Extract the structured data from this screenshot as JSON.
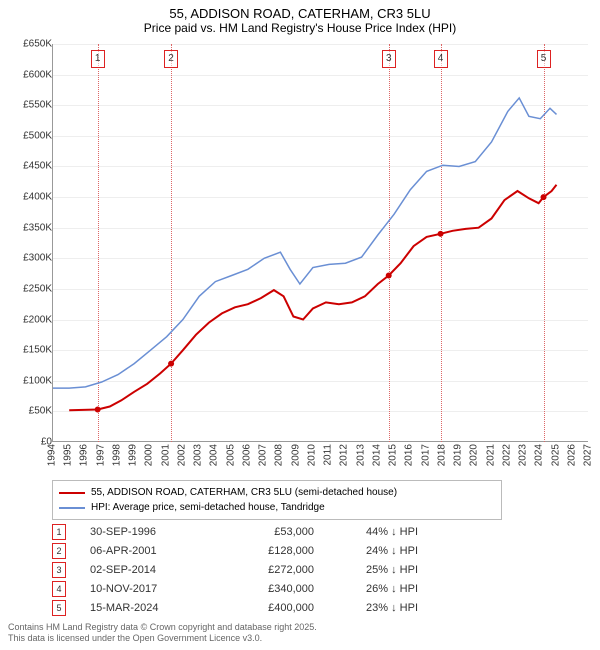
{
  "title": "55, ADDISON ROAD, CATERHAM, CR3 5LU",
  "subtitle": "Price paid vs. HM Land Registry's House Price Index (HPI)",
  "chart": {
    "type": "line",
    "x_axis": {
      "min": 1994,
      "max": 2027,
      "ticks": [
        1994,
        1995,
        1996,
        1997,
        1998,
        1999,
        2000,
        2001,
        2002,
        2003,
        2004,
        2005,
        2006,
        2007,
        2008,
        2009,
        2010,
        2011,
        2012,
        2013,
        2014,
        2015,
        2016,
        2017,
        2018,
        2019,
        2020,
        2021,
        2022,
        2023,
        2024,
        2025,
        2026,
        2027
      ]
    },
    "y_axis": {
      "min": 0,
      "max": 650000,
      "ticks": [
        0,
        50000,
        100000,
        150000,
        200000,
        250000,
        300000,
        350000,
        400000,
        450000,
        500000,
        550000,
        600000,
        650000
      ],
      "labels": [
        "£0",
        "£50K",
        "£100K",
        "£150K",
        "£200K",
        "£250K",
        "£300K",
        "£350K",
        "£400K",
        "£450K",
        "£500K",
        "£550K",
        "£600K",
        "£650K"
      ]
    },
    "grid_color": "#eeeeee",
    "axis_color": "#999999",
    "background": "#ffffff",
    "series": [
      {
        "name": "property_line",
        "label": "55, ADDISON ROAD, CATERHAM, CR3 5LU (semi-detached house)",
        "color": "#cc0000",
        "width": 2,
        "data": [
          [
            1995.0,
            52000
          ],
          [
            1996.75,
            53000
          ],
          [
            1997.5,
            58000
          ],
          [
            1998.2,
            68000
          ],
          [
            1999.0,
            82000
          ],
          [
            1999.8,
            95000
          ],
          [
            2000.6,
            112000
          ],
          [
            2001.27,
            128000
          ],
          [
            2002.0,
            150000
          ],
          [
            2002.8,
            175000
          ],
          [
            2003.6,
            195000
          ],
          [
            2004.4,
            210000
          ],
          [
            2005.2,
            220000
          ],
          [
            2006.0,
            225000
          ],
          [
            2006.8,
            235000
          ],
          [
            2007.6,
            248000
          ],
          [
            2008.2,
            238000
          ],
          [
            2008.8,
            205000
          ],
          [
            2009.4,
            200000
          ],
          [
            2010.0,
            218000
          ],
          [
            2010.8,
            228000
          ],
          [
            2011.6,
            225000
          ],
          [
            2012.4,
            228000
          ],
          [
            2013.2,
            238000
          ],
          [
            2014.0,
            258000
          ],
          [
            2014.67,
            272000
          ],
          [
            2015.4,
            292000
          ],
          [
            2016.2,
            320000
          ],
          [
            2017.0,
            335000
          ],
          [
            2017.86,
            340000
          ],
          [
            2018.6,
            345000
          ],
          [
            2019.4,
            348000
          ],
          [
            2020.2,
            350000
          ],
          [
            2021.0,
            365000
          ],
          [
            2021.8,
            395000
          ],
          [
            2022.6,
            410000
          ],
          [
            2023.3,
            398000
          ],
          [
            2023.9,
            390000
          ],
          [
            2024.2,
            400000
          ],
          [
            2024.7,
            410000
          ],
          [
            2025.0,
            420000
          ]
        ]
      },
      {
        "name": "hpi_line",
        "label": "HPI: Average price, semi-detached house, Tandridge",
        "color": "#6a8fd4",
        "width": 1.5,
        "data": [
          [
            1994.0,
            88000
          ],
          [
            1995.0,
            88000
          ],
          [
            1996.0,
            90000
          ],
          [
            1997.0,
            98000
          ],
          [
            1998.0,
            110000
          ],
          [
            1999.0,
            128000
          ],
          [
            2000.0,
            150000
          ],
          [
            2001.0,
            172000
          ],
          [
            2002.0,
            200000
          ],
          [
            2003.0,
            238000
          ],
          [
            2004.0,
            262000
          ],
          [
            2005.0,
            272000
          ],
          [
            2006.0,
            282000
          ],
          [
            2007.0,
            300000
          ],
          [
            2008.0,
            310000
          ],
          [
            2008.6,
            282000
          ],
          [
            2009.2,
            258000
          ],
          [
            2010.0,
            285000
          ],
          [
            2011.0,
            290000
          ],
          [
            2012.0,
            292000
          ],
          [
            2013.0,
            302000
          ],
          [
            2014.0,
            338000
          ],
          [
            2015.0,
            372000
          ],
          [
            2016.0,
            412000
          ],
          [
            2017.0,
            442000
          ],
          [
            2018.0,
            452000
          ],
          [
            2019.0,
            450000
          ],
          [
            2020.0,
            458000
          ],
          [
            2021.0,
            490000
          ],
          [
            2022.0,
            540000
          ],
          [
            2022.7,
            562000
          ],
          [
            2023.3,
            532000
          ],
          [
            2024.0,
            528000
          ],
          [
            2024.6,
            545000
          ],
          [
            2025.0,
            535000
          ]
        ]
      }
    ],
    "markers": [
      {
        "n": "1",
        "x": 1996.75,
        "y": 53000
      },
      {
        "n": "2",
        "x": 2001.27,
        "y": 128000
      },
      {
        "n": "3",
        "x": 2014.67,
        "y": 272000
      },
      {
        "n": "4",
        "x": 2017.86,
        "y": 340000
      },
      {
        "n": "5",
        "x": 2024.2,
        "y": 400000
      }
    ],
    "marker_color": "#d22",
    "marker_dotted": "#d66"
  },
  "legend": {
    "rows": [
      {
        "color": "#cc0000",
        "label": "55, ADDISON ROAD, CATERHAM, CR3 5LU (semi-detached house)"
      },
      {
        "color": "#6a8fd4",
        "label": "HPI: Average price, semi-detached house, Tandridge"
      }
    ]
  },
  "transactions": [
    {
      "n": "1",
      "date": "30-SEP-1996",
      "price": "£53,000",
      "pct": "44% ↓ HPI"
    },
    {
      "n": "2",
      "date": "06-APR-2001",
      "price": "£128,000",
      "pct": "24% ↓ HPI"
    },
    {
      "n": "3",
      "date": "02-SEP-2014",
      "price": "£272,000",
      "pct": "25% ↓ HPI"
    },
    {
      "n": "4",
      "date": "10-NOV-2017",
      "price": "£340,000",
      "pct": "26% ↓ HPI"
    },
    {
      "n": "5",
      "date": "15-MAR-2024",
      "price": "£400,000",
      "pct": "23% ↓ HPI"
    }
  ],
  "footer_lines": [
    "Contains HM Land Registry data © Crown copyright and database right 2025.",
    "This data is licensed under the Open Government Licence v3.0."
  ]
}
